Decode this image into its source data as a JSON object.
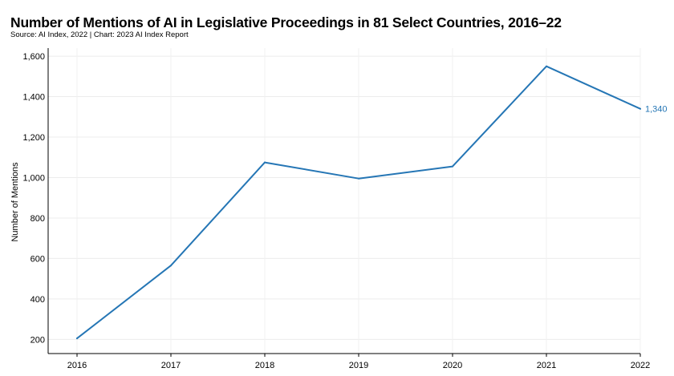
{
  "title": "Number of Mentions of AI in Legislative Proceedings in 81 Select Countries, 2016–22",
  "source": "Source: AI Index, 2022 | Chart: 2023 AI Index Report",
  "chart_data": {
    "type": "line",
    "title": "Number of Mentions of AI in Legislative Proceedings in 81 Select Countries, 2016–22",
    "xlabel": "",
    "ylabel": "Number of Mentions",
    "x": [
      "2016",
      "2017",
      "2018",
      "2019",
      "2020",
      "2021",
      "2022"
    ],
    "series": [
      {
        "values": [
          205,
          565,
          1075,
          995,
          1055,
          1550,
          1340
        ],
        "color": "#2576b5"
      }
    ],
    "yticks": [
      200,
      400,
      600,
      800,
      1000,
      1200,
      1400,
      1600
    ],
    "ytick_labels": [
      "200",
      "400",
      "600",
      "800",
      "1,000",
      "1,200",
      "1,400",
      "1,600"
    ],
    "ylim": [
      130,
      1640
    ],
    "grid": true,
    "end_label": "1,340",
    "legend": "none"
  }
}
